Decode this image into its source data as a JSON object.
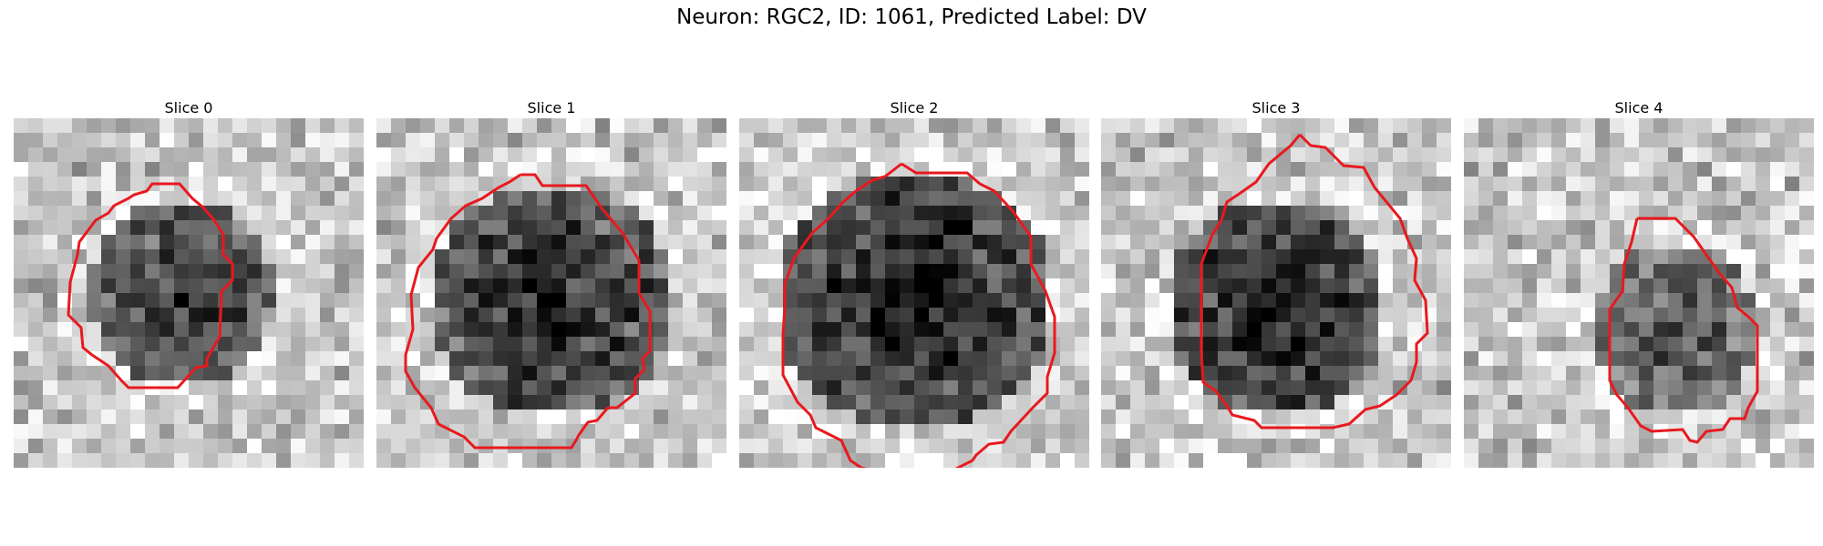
{
  "figure": {
    "title": "Neuron: RGC2, ID: 1061, Predicted Label: DV"
  },
  "panels": [
    {
      "title": "Slice 0",
      "image_kind": "grayscale microscopy crop",
      "contour_color": "#e8191e"
    },
    {
      "title": "Slice 1",
      "image_kind": "grayscale microscopy crop",
      "contour_color": "#e8191e"
    },
    {
      "title": "Slice 2",
      "image_kind": "grayscale microscopy crop",
      "contour_color": "#e8191e"
    },
    {
      "title": "Slice 3",
      "image_kind": "grayscale microscopy crop",
      "contour_color": "#e8191e"
    },
    {
      "title": "Slice 4",
      "image_kind": "grayscale microscopy crop",
      "contour_color": "#e8191e"
    }
  ]
}
